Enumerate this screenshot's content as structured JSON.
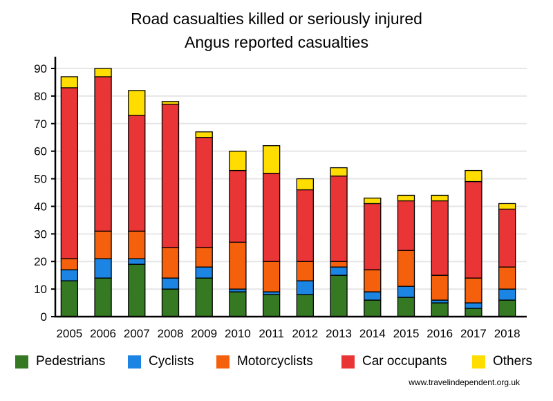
{
  "chart_data": {
    "type": "bar",
    "stacked": true,
    "title": "Road casualties killed or seriously injured",
    "subtitle": "Angus reported casualties",
    "xlabel": "",
    "ylabel": "",
    "ylim": [
      0,
      90
    ],
    "yticks": [
      0,
      10,
      20,
      30,
      40,
      50,
      60,
      70,
      80,
      90
    ],
    "grid": true,
    "legend_position": "bottom",
    "categories": [
      "2005",
      "2006",
      "2007",
      "2008",
      "2009",
      "2010",
      "2011",
      "2012",
      "2013",
      "2014",
      "2015",
      "2016",
      "2017",
      "2018"
    ],
    "series": [
      {
        "name": "Pedestrians",
        "color": "#357a23",
        "values": [
          13,
          14,
          19,
          10,
          14,
          9,
          8,
          8,
          15,
          6,
          7,
          5,
          3,
          6
        ]
      },
      {
        "name": "Cyclists",
        "color": "#1c84e2",
        "values": [
          4,
          7,
          2,
          4,
          4,
          1,
          1,
          5,
          3,
          3,
          4,
          1,
          2,
          4
        ]
      },
      {
        "name": "Motorcyclists",
        "color": "#f5600c",
        "values": [
          4,
          10,
          10,
          11,
          7,
          17,
          11,
          7,
          2,
          8,
          13,
          9,
          9,
          8
        ]
      },
      {
        "name": "Car occupants",
        "color": "#e93535",
        "values": [
          62,
          56,
          42,
          52,
          40,
          26,
          32,
          26,
          31,
          24,
          18,
          27,
          35,
          21
        ]
      },
      {
        "name": "Others",
        "color": "#ffdd00",
        "values": [
          4,
          3,
          9,
          1,
          2,
          7,
          10,
          4,
          3,
          2,
          2,
          2,
          4,
          2
        ]
      }
    ]
  },
  "source": "www.travelindependent.org.uk"
}
